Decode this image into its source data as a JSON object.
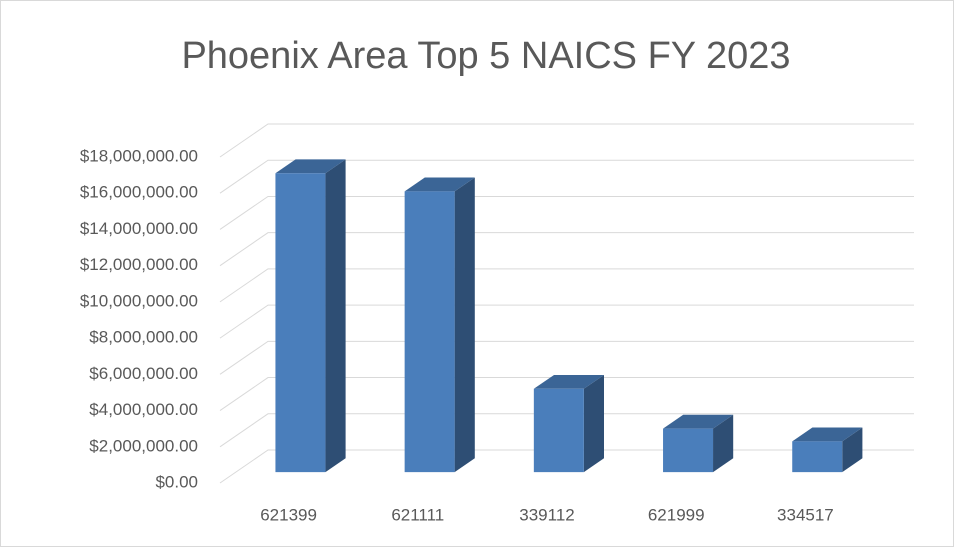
{
  "chart_data": {
    "type": "bar3d",
    "title": "Phoenix Area Top 5 NAICS FY 2023",
    "categories": [
      "621399",
      "621111",
      "339112",
      "621999",
      "334517"
    ],
    "values": [
      16500000,
      15500000,
      4600000,
      2400000,
      1700000
    ],
    "color": "#4a7ebb",
    "ylim": [
      0,
      18000000
    ],
    "yticks": [
      {
        "value": 0,
        "label": "$0.00"
      },
      {
        "value": 2000000,
        "label": "$2,000,000.00"
      },
      {
        "value": 4000000,
        "label": "$4,000,000.00"
      },
      {
        "value": 6000000,
        "label": "$6,000,000.00"
      },
      {
        "value": 8000000,
        "label": "$8,000,000.00"
      },
      {
        "value": 10000000,
        "label": "$10,000,000.00"
      },
      {
        "value": 12000000,
        "label": "$12,000,000.00"
      },
      {
        "value": 14000000,
        "label": "$14,000,000.00"
      },
      {
        "value": 16000000,
        "label": "$16,000,000.00"
      },
      {
        "value": 18000000,
        "label": "$18,000,000.00"
      }
    ],
    "grid": true
  }
}
